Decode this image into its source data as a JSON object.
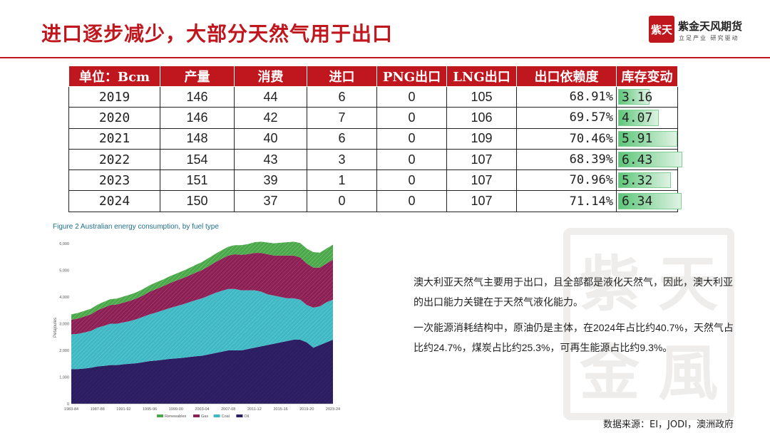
{
  "header": {
    "title": "进口逐步减少，大部分天然气用于出口",
    "brand_name": "紫金天风期货",
    "brand_slogan": "立足产业 研究驱动",
    "logo_text": "紫天"
  },
  "watermark_chars": [
    "紫",
    "天",
    "金",
    "風"
  ],
  "table": {
    "headers": [
      "单位：Bcm",
      "产量",
      "消费",
      "进口",
      "PNG出口",
      "LNG出口",
      "出口依赖度",
      "库存变动"
    ],
    "rows": [
      {
        "year": "2019",
        "production": "146",
        "consumption": "44",
        "import": "6",
        "png_export": "0",
        "lng_export": "105",
        "export_ratio": "68.91%",
        "stock_change": "3.16",
        "stock_value": 3.16
      },
      {
        "year": "2020",
        "production": "146",
        "consumption": "42",
        "import": "7",
        "png_export": "0",
        "lng_export": "106",
        "export_ratio": "69.57%",
        "stock_change": "4.07",
        "stock_value": 4.07
      },
      {
        "year": "2021",
        "production": "148",
        "consumption": "40",
        "import": "6",
        "png_export": "0",
        "lng_export": "109",
        "export_ratio": "70.46%",
        "stock_change": "5.91",
        "stock_value": 5.91
      },
      {
        "year": "2022",
        "production": "154",
        "consumption": "43",
        "import": "3",
        "png_export": "0",
        "lng_export": "107",
        "export_ratio": "68.39%",
        "stock_change": "6.43",
        "stock_value": 6.43
      },
      {
        "year": "2023",
        "production": "151",
        "consumption": "39",
        "import": "1",
        "png_export": "0",
        "lng_export": "107",
        "export_ratio": "70.96%",
        "stock_change": "5.32",
        "stock_value": 5.32
      },
      {
        "year": "2024",
        "production": "150",
        "consumption": "37",
        "import": "0",
        "png_export": "0",
        "lng_export": "107",
        "export_ratio": "71.14%",
        "stock_change": "6.34",
        "stock_value": 6.34
      }
    ]
  },
  "figure_caption": "Figure 2 Australian energy consumption, by fuel type",
  "chart_data": {
    "type": "area",
    "title": "Figure 2 Australian energy consumption, by fuel type",
    "ylabel": "Petajoules",
    "ylim": [
      0,
      6000
    ],
    "yticks": [
      "0",
      "1,000",
      "2,000",
      "3,000",
      "4,000",
      "5,000",
      "6,000"
    ],
    "xticks": [
      "1983-84",
      "1987-88",
      "1991-92",
      "1995-96",
      "1999-00",
      "2003-04",
      "2007-08",
      "2011-12",
      "2015-16",
      "2019-20",
      "2023-24"
    ],
    "xtick_positions": [
      1983,
      1987,
      1991,
      1995,
      1999,
      2003,
      2007,
      2011,
      2015,
      2019,
      2023
    ],
    "x": [
      1983,
      1984,
      1985,
      1986,
      1987,
      1988,
      1989,
      1990,
      1991,
      1992,
      1993,
      1994,
      1995,
      1996,
      1997,
      1998,
      1999,
      2000,
      2001,
      2002,
      2003,
      2004,
      2005,
      2006,
      2007,
      2008,
      2009,
      2010,
      2011,
      2012,
      2013,
      2014,
      2015,
      2016,
      2017,
      2018,
      2019,
      2020,
      2021,
      2022,
      2023
    ],
    "series": [
      {
        "name": "Oil",
        "color": "#2b1d5f",
        "values": [
          1300,
          1300,
          1320,
          1350,
          1400,
          1420,
          1450,
          1450,
          1480,
          1500,
          1520,
          1560,
          1600,
          1620,
          1650,
          1680,
          1700,
          1720,
          1750,
          1780,
          1800,
          1850,
          1900,
          1950,
          2000,
          2000,
          2000,
          2050,
          2100,
          2150,
          2200,
          2250,
          2300,
          2350,
          2400,
          2400,
          2300,
          2100,
          2200,
          2300,
          2400
        ]
      },
      {
        "name": "Coal",
        "color": "#3fb8c4",
        "values": [
          1300,
          1320,
          1350,
          1380,
          1450,
          1500,
          1550,
          1550,
          1570,
          1600,
          1650,
          1700,
          1750,
          1800,
          1850,
          1900,
          1950,
          2000,
          2050,
          2100,
          2150,
          2200,
          2250,
          2280,
          2300,
          2300,
          2250,
          2200,
          2150,
          2050,
          1900,
          1800,
          1700,
          1600,
          1550,
          1500,
          1400,
          1500,
          1450,
          1500,
          1500
        ]
      },
      {
        "name": "Gas",
        "color": "#8b2055",
        "values": [
          550,
          570,
          600,
          620,
          650,
          680,
          700,
          720,
          740,
          760,
          780,
          800,
          850,
          880,
          900,
          930,
          960,
          980,
          1000,
          1030,
          1060,
          1100,
          1150,
          1200,
          1250,
          1300,
          1330,
          1350,
          1400,
          1450,
          1500,
          1500,
          1550,
          1600,
          1600,
          1580,
          1550,
          1500,
          1450,
          1450,
          1500
        ]
      },
      {
        "name": "Renewables",
        "color": "#4ba84a",
        "values": [
          200,
          210,
          210,
          210,
          210,
          220,
          220,
          220,
          230,
          230,
          230,
          240,
          240,
          250,
          250,
          260,
          260,
          270,
          280,
          290,
          300,
          310,
          310,
          320,
          330,
          340,
          360,
          380,
          400,
          420,
          440,
          460,
          480,
          500,
          520,
          540,
          560,
          580,
          560,
          560,
          560
        ]
      }
    ],
    "legend": [
      "Renewables",
      "Gas",
      "Coal",
      "Oil"
    ],
    "legend_position": "bottom",
    "grid": false
  },
  "paragraphs": [
    "澳大利亚天然气主要用于出口，且全部都是液化天然气，因此，澳大利亚的出口能力关键在于天然气液化能力。",
    "一次能源消耗结构中，原油仍是主体，在2024年占比约40.7%，天然气占比约24.7%，煤炭占比约25.3%，可再生能源占比约9.3%。"
  ],
  "source": "数据来源：EI，JODI，澳洲政府"
}
